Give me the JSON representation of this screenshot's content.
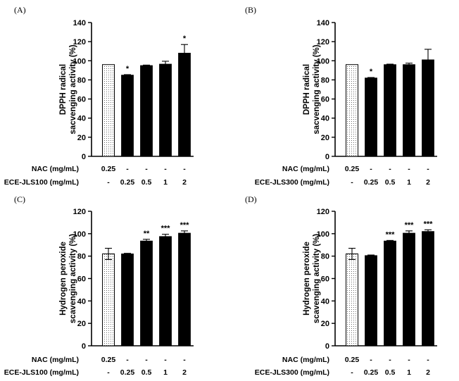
{
  "chart_data": [
    {
      "type": "bar",
      "panel_label": "(A)",
      "ylabel": [
        "DPPH radical",
        "sacvenging activity (%)"
      ],
      "ylim": [
        0,
        140
      ],
      "yticks": [
        0,
        20,
        40,
        60,
        80,
        100,
        120,
        140
      ],
      "treatment_rows": [
        {
          "label": "NAC (mg/mL)",
          "values": [
            "0.25",
            "-",
            "-",
            "-",
            "-"
          ]
        },
        {
          "label": "ECE-JLS100 (mg/mL)",
          "values": [
            "-",
            "0.25",
            "0.5",
            "1",
            "2"
          ]
        }
      ],
      "values": [
        96,
        85,
        95,
        96.5,
        108
      ],
      "errors": [
        0,
        0.5,
        0.5,
        3,
        9
      ],
      "significance": [
        "",
        "*",
        "",
        "",
        "*"
      ],
      "bar_styles": [
        "dotted",
        "solid",
        "solid",
        "solid",
        "solid"
      ]
    },
    {
      "type": "bar",
      "panel_label": "(B)",
      "ylabel": [
        "DPPH radical",
        "sacvenging activity (%)"
      ],
      "ylim": [
        0,
        140
      ],
      "yticks": [
        0,
        20,
        40,
        60,
        80,
        100,
        120,
        140
      ],
      "treatment_rows": [
        {
          "label": "NAC (mg/mL)",
          "values": [
            "0.25",
            "-",
            "-",
            "-",
            "-"
          ]
        },
        {
          "label": "ECE-JLS300 (mg/mL)",
          "values": [
            "-",
            "0.25",
            "0.5",
            "1",
            "2"
          ]
        }
      ],
      "values": [
        96,
        82,
        96,
        96,
        101
      ],
      "errors": [
        0,
        0.5,
        0.5,
        1.5,
        11
      ],
      "significance": [
        "",
        "*",
        "",
        "",
        ""
      ],
      "bar_styles": [
        "dotted",
        "solid",
        "solid",
        "solid",
        "solid"
      ]
    },
    {
      "type": "bar",
      "panel_label": "(C)",
      "ylabel": [
        "Hydrogen peroxide",
        "scavenging activity (%)"
      ],
      "ylim": [
        0,
        120
      ],
      "yticks": [
        0,
        20,
        40,
        60,
        80,
        100,
        120
      ],
      "treatment_rows": [
        {
          "label": "NAC (mg/mL)",
          "values": [
            "0.25",
            "-",
            "-",
            "-",
            "-"
          ]
        },
        {
          "label": "ECE-JLS100 (mg/mL)",
          "values": [
            "-",
            "0.25",
            "0.5",
            "1",
            "2"
          ]
        }
      ],
      "values": [
        82,
        82,
        93.5,
        97.5,
        100.5
      ],
      "errors": [
        5,
        0.5,
        1.5,
        2,
        2
      ],
      "significance": [
        "",
        "",
        "**",
        "***",
        "***"
      ],
      "bar_styles": [
        "dotted",
        "solid",
        "solid",
        "solid",
        "solid"
      ]
    },
    {
      "type": "bar",
      "panel_label": "(D)",
      "ylabel": [
        "Hydrogen peroxide",
        "scavenging activity (%)"
      ],
      "ylim": [
        0,
        120
      ],
      "yticks": [
        0,
        20,
        40,
        60,
        80,
        100,
        120
      ],
      "treatment_rows": [
        {
          "label": "NAC (mg/mL)",
          "values": [
            "0.25",
            "-",
            "-",
            "-",
            "-"
          ]
        },
        {
          "label": "ECE-JLS300 (mg/mL)",
          "values": [
            "-",
            "0.25",
            "0.5",
            "1",
            "2"
          ]
        }
      ],
      "values": [
        82,
        80.5,
        93.5,
        100.5,
        102
      ],
      "errors": [
        5,
        0.5,
        0.5,
        2,
        1.5
      ],
      "significance": [
        "",
        "",
        "***",
        "***",
        "***"
      ],
      "bar_styles": [
        "dotted",
        "solid",
        "solid",
        "solid",
        "solid"
      ]
    }
  ],
  "colors": {
    "bar_fill": "#000000",
    "dotted_fill": "#ffffff",
    "axis": "#000000"
  }
}
